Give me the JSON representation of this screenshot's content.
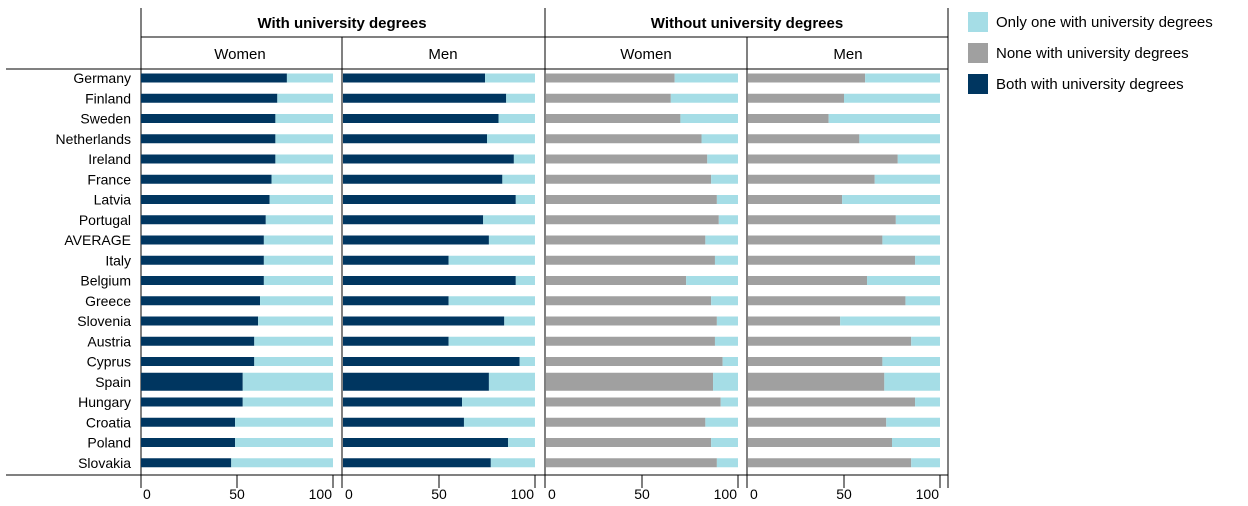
{
  "chart_data": {
    "type": "bar",
    "stacked": true,
    "orientation": "horizontal",
    "groups": [
      {
        "title": "With university degrees",
        "subgroups": [
          "Women",
          "Men"
        ]
      },
      {
        "title": "Without university degrees",
        "subgroups": [
          "Women",
          "Men"
        ]
      }
    ],
    "legend": {
      "placement": "right",
      "items": [
        {
          "label": "Only one with university degrees",
          "color": "#a5dde6"
        },
        {
          "label": "None with university degrees",
          "color": "#a0a0a0"
        },
        {
          "label": "Both with university degrees",
          "color": "#003660"
        }
      ]
    },
    "colors": {
      "both": "#003660",
      "only_one": "#a5dde6",
      "none": "#a0a0a0"
    },
    "categories": [
      "Germany",
      "Finland",
      "Sweden",
      "Netherlands",
      "Ireland",
      "France",
      "Latvia",
      "Portugal",
      "AVERAGE",
      "Italy",
      "Belgium",
      "Greece",
      "Slovenia",
      "Austria",
      "Cyprus",
      "Spain",
      "Hungary",
      "Croatia",
      "Poland",
      "Slovakia"
    ],
    "highlight_category": "Spain",
    "xlim": [
      0,
      100
    ],
    "xticks": [
      "0",
      "50",
      "100"
    ],
    "panels": [
      {
        "group": "With university degrees",
        "subgroup": "Women",
        "first_series": "Both with university degrees",
        "second_series": "Only one with university degrees",
        "values": [
          76,
          71,
          70,
          70,
          70,
          68,
          67,
          65,
          64,
          64,
          64,
          62,
          61,
          59,
          59,
          53,
          53,
          49,
          49,
          47
        ]
      },
      {
        "group": "With university degrees",
        "subgroup": "Men",
        "first_series": "Both with university degrees",
        "second_series": "Only one with university degrees",
        "values": [
          74,
          85,
          81,
          75,
          89,
          83,
          90,
          73,
          76,
          55,
          90,
          55,
          84,
          55,
          92,
          76,
          62,
          63,
          86,
          77
        ]
      },
      {
        "group": "Without university degrees",
        "subgroup": "Women",
        "first_series": "None with university degrees",
        "second_series": "Only one with university degrees",
        "values": [
          67,
          65,
          70,
          81,
          84,
          86,
          89,
          90,
          83,
          88,
          73,
          86,
          89,
          88,
          92,
          87,
          91,
          83,
          86,
          89
        ]
      },
      {
        "group": "Without university degrees",
        "subgroup": "Men",
        "first_series": "None with university degrees",
        "second_series": "Only one with university degrees",
        "values": [
          61,
          50,
          42,
          58,
          78,
          66,
          49,
          77,
          70,
          87,
          62,
          82,
          48,
          85,
          70,
          71,
          87,
          72,
          75,
          85
        ]
      }
    ]
  }
}
